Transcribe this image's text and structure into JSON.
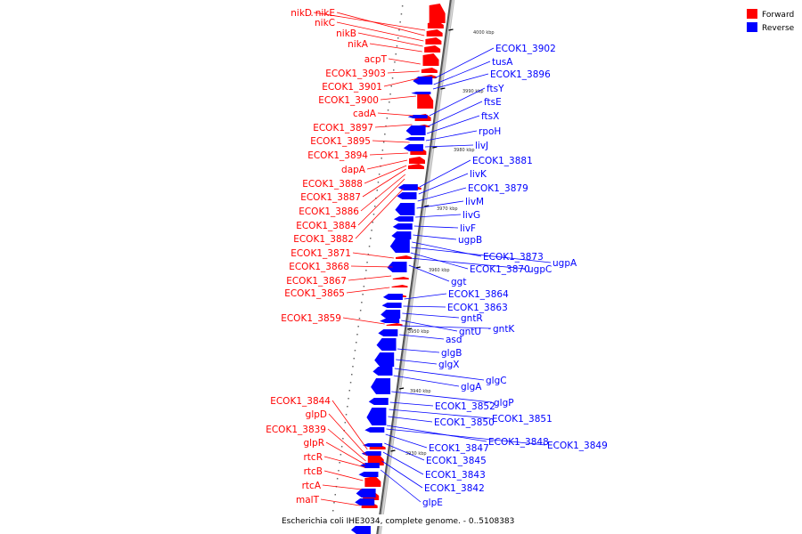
{
  "colors": {
    "forward": "#ff0000",
    "reverse": "#0000ff",
    "axis": "#888888"
  },
  "legend": {
    "forward": "Forward",
    "reverse": "Reverse"
  },
  "caption": "Escherichia coli IHE3034, complete genome. - 0..5108383",
  "ticks": [
    "4000 kbp",
    "3990 kbp",
    "3980 kbp",
    "3970 kbp",
    "3960 kbp",
    "3950 kbp",
    "3940 kbp",
    "3930 kbp"
  ],
  "forward_genes": [
    "nikD",
    "nikE",
    "nikC",
    "nikB",
    "nikA",
    "acpT",
    "ECOK1_3903",
    "ECOK1_3901",
    "ECOK1_3900",
    "cadA",
    "ECOK1_3897",
    "ECOK1_3895",
    "ECOK1_3894",
    "dapA",
    "ECOK1_3888",
    "ECOK1_3887",
    "ECOK1_3886",
    "ECOK1_3884",
    "ECOK1_3882",
    "ECOK1_3871",
    "ECOK1_3868",
    "ECOK1_3867",
    "ECOK1_3865",
    "ECOK1_3859",
    "ECOK1_3844",
    "glpD",
    "ECOK1_3839",
    "glpR",
    "rtcR",
    "rtcB",
    "rtcA",
    "malT"
  ],
  "reverse_genes": [
    "ECOK1_3902",
    "tusA",
    "ECOK1_3896",
    "ftsY",
    "ftsE",
    "ftsX",
    "rpoH",
    "livJ",
    "ECOK1_3881",
    "livK",
    "ECOK1_3879",
    "livM",
    "livG",
    "livF",
    "ugpB",
    "ECOK1_3873",
    "ugpA",
    "ECOK1_3870",
    "ugpC",
    "ggt",
    "ECOK1_3864",
    "ECOK1_3863",
    "gntR",
    "gntU",
    "gntK",
    "asd",
    "glgB",
    "glgX",
    "glgC",
    "glgA",
    "glgP",
    "ECOK1_3852",
    "ECOK1_3851",
    "ECOK1_3850",
    "ECOK1_3848",
    "ECOK1_3849",
    "ECOK1_3847",
    "ECOK1_3845",
    "ECOK1_3843",
    "ECOK1_3842",
    "glpE"
  ]
}
